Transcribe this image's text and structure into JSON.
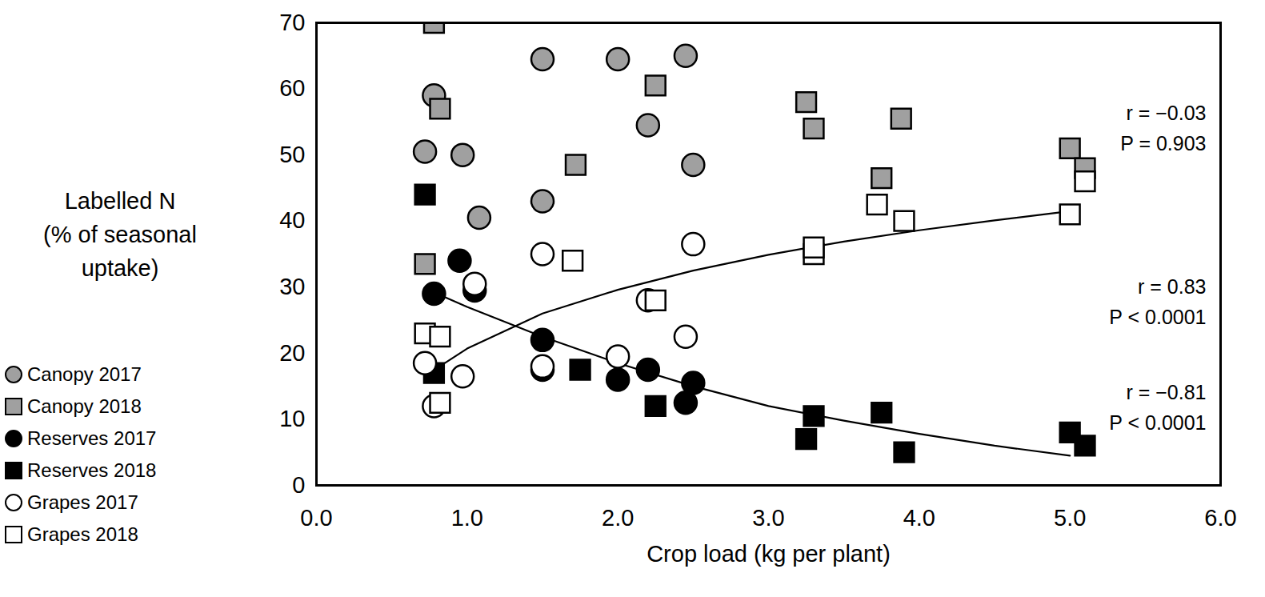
{
  "chart_data": {
    "type": "scatter",
    "xlabel": "Crop load (kg per plant)",
    "ylabel": "Labelled N\n(% of seasonal\nuptake)",
    "xlim": [
      0,
      6
    ],
    "xticks": [
      {
        "value": 0,
        "label": "0.0"
      },
      {
        "value": 1,
        "label": "1.0"
      },
      {
        "value": 2,
        "label": "2.0"
      },
      {
        "value": 3,
        "label": "3.0"
      },
      {
        "value": 4,
        "label": "4.0"
      },
      {
        "value": 5,
        "label": "5.0"
      },
      {
        "value": 6,
        "label": "6.0"
      }
    ],
    "ylim": [
      0,
      70
    ],
    "yticks": [
      0,
      10,
      20,
      30,
      40,
      50,
      60,
      70
    ],
    "grid": false,
    "legend": "left",
    "series": [
      {
        "name": "Canopy 2017",
        "type": "scatter",
        "marker": "circle",
        "color": "#a0a0a0",
        "x": [
          0.78,
          0.72,
          0.97,
          1.08,
          1.5,
          1.5,
          2.0,
          2.2,
          2.45,
          2.5
        ],
        "values": [
          59,
          50.5,
          50,
          40.5,
          64.5,
          43,
          64.5,
          54.5,
          65,
          48.5
        ]
      },
      {
        "name": "Canopy 2018",
        "type": "scatter",
        "marker": "square",
        "color": "#a0a0a0",
        "x": [
          0.78,
          0.82,
          0.72,
          1.72,
          2.25,
          3.25,
          3.3,
          3.75,
          3.88,
          5.0,
          5.1
        ],
        "values": [
          70,
          57,
          33.5,
          48.5,
          60.5,
          58,
          54,
          46.5,
          55.5,
          51,
          48
        ]
      },
      {
        "name": "Reserves 2017",
        "type": "scatter",
        "marker": "circle",
        "color": "#000000",
        "x": [
          0.78,
          0.95,
          1.05,
          1.5,
          1.5,
          2.0,
          2.2,
          2.45,
          2.5
        ],
        "values": [
          29,
          34,
          29.5,
          22,
          17.5,
          16,
          17.5,
          12.5,
          15.5
        ]
      },
      {
        "name": "Reserves 2018",
        "type": "scatter",
        "marker": "square",
        "color": "#000000",
        "x": [
          0.72,
          0.78,
          1.75,
          2.25,
          3.25,
          3.3,
          3.75,
          3.9,
          5.0,
          5.1
        ],
        "values": [
          44,
          17,
          17.5,
          12,
          7,
          10.5,
          11,
          5,
          8,
          6
        ]
      },
      {
        "name": "Grapes 2017",
        "type": "scatter",
        "marker": "circle",
        "color": "#ffffff",
        "x": [
          0.72,
          0.78,
          0.97,
          1.05,
          1.5,
          1.5,
          2.0,
          2.2,
          2.45,
          2.5
        ],
        "values": [
          18.5,
          12,
          16.5,
          30.5,
          35,
          18,
          19.5,
          28,
          22.5,
          36.5
        ]
      },
      {
        "name": "Grapes 2018",
        "type": "scatter",
        "marker": "square",
        "color": "#ffffff",
        "x": [
          0.72,
          0.82,
          0.82,
          1.7,
          2.25,
          3.3,
          3.3,
          3.72,
          3.9,
          5.0,
          5.1
        ],
        "values": [
          23,
          22.5,
          12.5,
          34,
          28,
          35,
          36,
          42.5,
          40,
          41,
          46
        ]
      },
      {
        "type": "line",
        "color": "#000000",
        "x": [
          0.75,
          1,
          1.5,
          2,
          2.5,
          3,
          3.5,
          4,
          4.5,
          5
        ],
        "values": [
          17,
          20.7,
          26,
          29.6,
          32.5,
          34.9,
          36.9,
          38.6,
          40.1,
          41.5
        ]
      },
      {
        "type": "line",
        "color": "#000000",
        "x": [
          0.8,
          1,
          1.5,
          2,
          2.5,
          3,
          3.5,
          4,
          4.5,
          5
        ],
        "values": [
          29,
          27,
          22.5,
          18.5,
          15,
          12,
          9.8,
          7.8,
          6,
          4.5
        ]
      }
    ],
    "annotations": [
      "r = −0.03\nP = 0.903",
      "r = 0.83\nP < 0.0001",
      "r = −0.81\nP < 0.0001"
    ]
  }
}
